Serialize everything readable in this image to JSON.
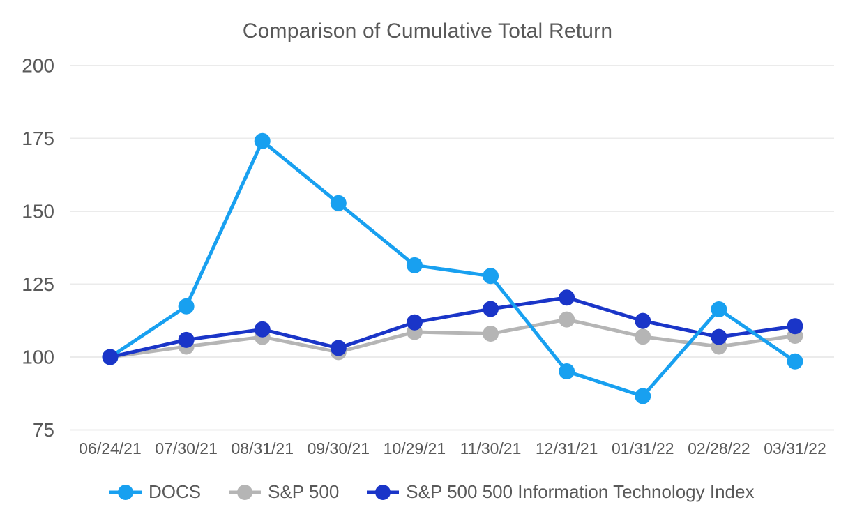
{
  "title": "Comparison of Cumulative Total Return",
  "colors": {
    "background": "#ffffff",
    "grid": "#ebebeb",
    "title_text": "#595959",
    "axis_text": "#595959",
    "legend_text": "#595959"
  },
  "chart_data": {
    "type": "line",
    "title": "Comparison of Cumulative Total Return",
    "categories": [
      "06/24/21",
      "07/30/21",
      "08/31/21",
      "09/30/21",
      "10/29/21",
      "11/30/21",
      "12/31/21",
      "01/31/22",
      "02/28/22",
      "03/31/22"
    ],
    "series": [
      {
        "name": "DOCS",
        "slug": "docs",
        "color": "#18A0F0",
        "values": [
          100,
          117.4,
          174.1,
          152.8,
          131.5,
          127.8,
          95.1,
          86.6,
          116.4,
          98.5
        ]
      },
      {
        "name": "S&P 500",
        "slug": "sp500",
        "color": "#B5B5B5",
        "values": [
          100,
          103.6,
          106.9,
          101.7,
          108.6,
          108.0,
          112.9,
          107.0,
          103.6,
          107.3
        ]
      },
      {
        "name": "S&P 500 500 Information Technology Index",
        "slug": "sp500-it",
        "color": "#1A35C8",
        "values": [
          100,
          105.9,
          109.5,
          103.1,
          111.9,
          116.5,
          120.4,
          112.4,
          106.9,
          110.6
        ]
      }
    ],
    "ylim": [
      75,
      200
    ],
    "y_ticks": [
      200,
      175,
      150,
      125,
      100,
      75
    ],
    "grid": true,
    "legend_position": "bottom",
    "markers": "filled-circle"
  }
}
